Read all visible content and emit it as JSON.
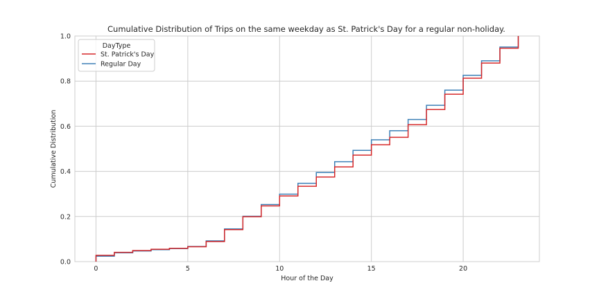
{
  "chart_data": {
    "type": "line",
    "drawstyle": "steps-post",
    "title": "Cumulative Distribution of Trips on the same weekday as St. Patrick's Day for a regular non-holiday.",
    "xlabel": "Hour of the Day",
    "ylabel": "Cumulative Distribution",
    "xlim": [
      -1.15,
      24.15
    ],
    "ylim": [
      0,
      1.0
    ],
    "xticks": [
      0,
      5,
      10,
      15,
      20
    ],
    "yticks": [
      0.0,
      0.2,
      0.4,
      0.6,
      0.8,
      1.0
    ],
    "xtick_labels": [
      "0",
      "5",
      "10",
      "15",
      "20"
    ],
    "ytick_labels": [
      "0.0",
      "0.2",
      "0.4",
      "0.6",
      "0.8",
      "1.0"
    ],
    "grid": true,
    "legend": {
      "title": "DayType",
      "placement": "top-left"
    },
    "x": [
      0,
      1,
      2,
      3,
      4,
      5,
      6,
      7,
      8,
      9,
      10,
      11,
      12,
      13,
      14,
      15,
      16,
      17,
      18,
      19,
      20,
      21,
      22,
      23
    ],
    "series": [
      {
        "name": "St. Patrick's Day",
        "color": "#d62728",
        "values": [
          0.028,
          0.041,
          0.049,
          0.055,
          0.059,
          0.066,
          0.089,
          0.142,
          0.199,
          0.247,
          0.291,
          0.334,
          0.375,
          0.42,
          0.472,
          0.518,
          0.551,
          0.607,
          0.674,
          0.742,
          0.813,
          0.88,
          0.946,
          1.0
        ]
      },
      {
        "name": "Regular Day",
        "color": "#3b7fb6",
        "values": [
          0.024,
          0.039,
          0.047,
          0.053,
          0.058,
          0.067,
          0.092,
          0.145,
          0.201,
          0.253,
          0.299,
          0.347,
          0.395,
          0.443,
          0.493,
          0.54,
          0.58,
          0.63,
          0.693,
          0.76,
          0.826,
          0.89,
          0.951,
          1.0
        ]
      }
    ]
  }
}
